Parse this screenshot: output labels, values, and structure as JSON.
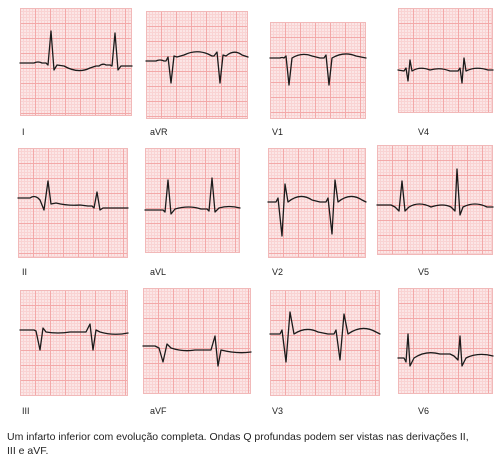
{
  "leads": [
    {
      "name": "I",
      "label": "I"
    },
    {
      "name": "aVR",
      "label": "aVR"
    },
    {
      "name": "V1",
      "label": "V1"
    },
    {
      "name": "V4",
      "label": "V4"
    },
    {
      "name": "II",
      "label": "II"
    },
    {
      "name": "aVL",
      "label": "aVL"
    },
    {
      "name": "V2",
      "label": "V2"
    },
    {
      "name": "V5",
      "label": "V5"
    },
    {
      "name": "III",
      "label": "III"
    },
    {
      "name": "aVF",
      "label": "aVF"
    },
    {
      "name": "V3",
      "label": "V3"
    },
    {
      "name": "V6",
      "label": "V6"
    }
  ],
  "caption": "Um infarto inferior com evolução completa. Ondas Q profundas podem ser vistas nas derivações II, III e aVF.",
  "colors": {
    "grid_major": "#f3a9a9",
    "grid_minor": "#f9d3d3",
    "paper": "#fbe6e6",
    "trace": "#1b1b1b"
  }
}
